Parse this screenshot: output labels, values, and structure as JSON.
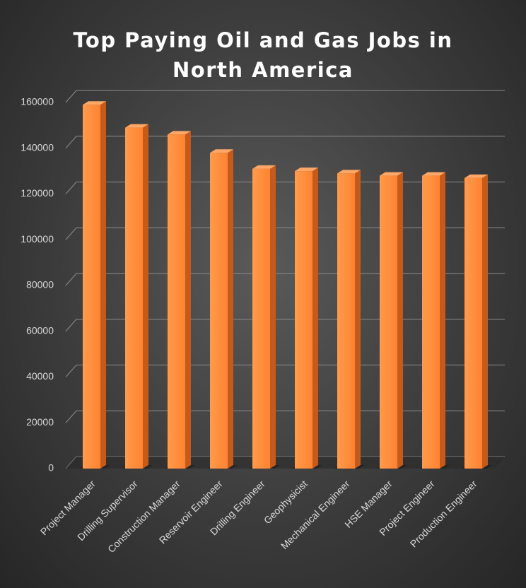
{
  "chart_data": {
    "type": "bar3d",
    "title": "Top Paying Oil and Gas Jobs in North America",
    "categories": [
      "Project Manager",
      "Drilling Supervisor",
      "Construction Manager",
      "Reservoir Engineer",
      "Drilling Engineer",
      "Geophysicist",
      "Mechanical Engineer",
      "HSE Manager",
      "Project Engineer",
      "Production Engineer"
    ],
    "values": [
      159000,
      149000,
      146000,
      138000,
      131000,
      130000,
      129000,
      128000,
      128000,
      127000
    ],
    "color": "#ff8a3d",
    "ylim": [
      0,
      160000
    ],
    "yticks": [
      0,
      20000,
      40000,
      60000,
      80000,
      100000,
      120000,
      140000,
      160000
    ],
    "grid": true
  }
}
